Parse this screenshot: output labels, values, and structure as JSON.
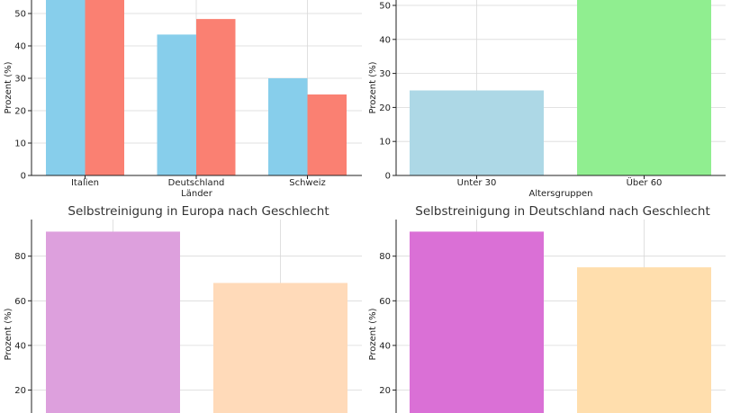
{
  "chart_data": [
    {
      "type": "bar",
      "title": "",
      "xlabel": "Länder",
      "ylabel": "Prozent (%)",
      "categories": [
        "Italien",
        "Deutschland",
        "Schweiz"
      ],
      "series": [
        {
          "values": [
            55,
            43.5,
            30
          ],
          "color": "#87ceeb"
        },
        {
          "values": [
            55,
            48.3,
            25
          ],
          "color": "#fa8072"
        }
      ],
      "ylim": [
        0,
        55
      ],
      "yticks": [
        0,
        10,
        20,
        30,
        40,
        50
      ],
      "grid": true
    },
    {
      "type": "bar",
      "title": "",
      "xlabel": "Altersgruppen",
      "ylabel": "Prozent (%)",
      "categories": [
        "Unter 30",
        "Über 60"
      ],
      "series": [
        {
          "values": [
            25,
            55
          ],
          "colors": [
            "#add8e6",
            "#90ee90"
          ]
        }
      ],
      "ylim": [
        0,
        55
      ],
      "yticks": [
        0,
        10,
        20,
        30,
        40,
        50
      ],
      "grid": true
    },
    {
      "type": "bar",
      "title": "Selbstreinigung in Europa nach Geschlecht",
      "xlabel": "",
      "ylabel": "Prozent (%)",
      "categories": [
        "",
        ""
      ],
      "series": [
        {
          "values": [
            91,
            68
          ],
          "colors": [
            "#dda0dd",
            "#ffdab9"
          ]
        }
      ],
      "ylim": [
        10,
        95
      ],
      "yticks": [
        20,
        40,
        60,
        80
      ],
      "grid": true
    },
    {
      "type": "bar",
      "title": "Selbstreinigung in Deutschland nach Geschlecht",
      "xlabel": "",
      "ylabel": "Prozent (%)",
      "categories": [
        "",
        ""
      ],
      "series": [
        {
          "values": [
            91,
            75
          ],
          "colors": [
            "#da70d6",
            "#ffdead"
          ]
        }
      ],
      "ylim": [
        10,
        95
      ],
      "yticks": [
        20,
        40,
        60,
        80
      ],
      "grid": true
    }
  ]
}
